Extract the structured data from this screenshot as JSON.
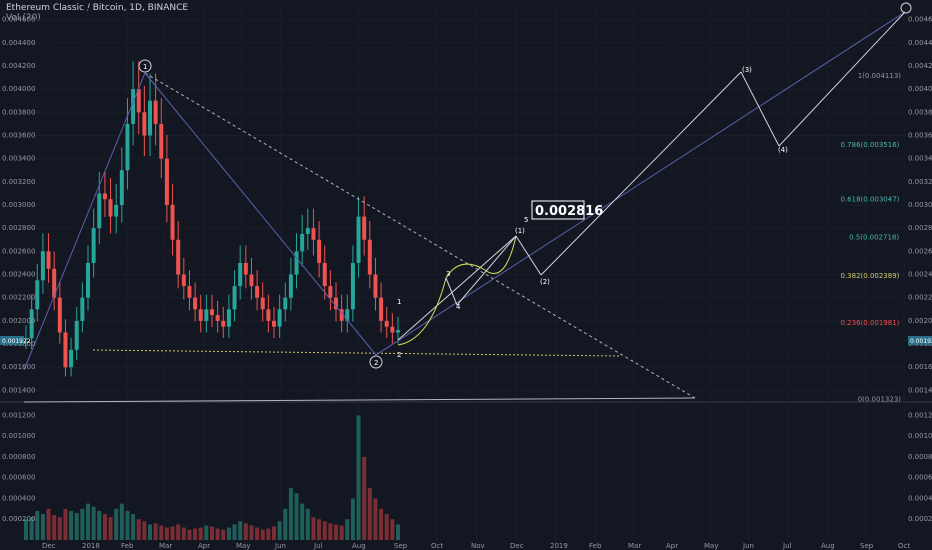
{
  "header": {
    "symbol_title": "Ethereum Classic / Bitcoin, 1D, BINANCE",
    "volume_label": "Vol (20)"
  },
  "colors": {
    "background": "#131722",
    "up_candle": "#26a69a",
    "down_candle": "#ef5350",
    "grid": "#1e222d",
    "fib_line": "#b2b5be"
  },
  "price_callout": "0.002816",
  "current_price_tag": "0.001922",
  "chart_data": {
    "type": "candlestick",
    "x_ticks": [
      "Dec",
      "2018",
      "Feb",
      "Mar",
      "Apr",
      "May",
      "Jun",
      "Jul",
      "Aug",
      "Sep",
      "Oct",
      "Nov",
      "Dec",
      "2019",
      "Feb",
      "Mar",
      "Apr",
      "May",
      "Jun",
      "Jul",
      "Aug",
      "Sep",
      "Oct"
    ],
    "y_ticks": [
      "0.004600",
      "0.004400",
      "0.004200",
      "0.004000",
      "0.003800",
      "0.003600",
      "0.003400",
      "0.003200",
      "0.003000",
      "0.002800",
      "0.002600",
      "0.002400",
      "0.002200",
      "0.002000",
      "0.001800",
      "0.001600",
      "0.001400"
    ],
    "volume_ticks": [
      "0.001200",
      "0.001000",
      "0.000800",
      "0.000600",
      "0.000400",
      "0.000200"
    ],
    "price_range": [
      0.0013,
      0.0047
    ],
    "fib_levels": [
      {
        "label": "1(0.004113)",
        "value": 0.004113,
        "color": "#9598a1"
      },
      {
        "label": "0.786(0.003516)",
        "value": 0.003516,
        "color": "#4db6ac"
      },
      {
        "label": "0.618(0.003047)",
        "value": 0.003047,
        "color": "#4db6ac"
      },
      {
        "label": "0.5(0.002718)",
        "value": 0.002718,
        "color": "#4db6ac"
      },
      {
        "label": "0.382(0.002389)",
        "value": 0.002389,
        "color": "#d4c96a"
      },
      {
        "label": "0.236(0.001981)",
        "value": 0.001981,
        "color": "#ef5350"
      },
      {
        "label": "0(0.001323)",
        "value": 0.001323,
        "color": "#9598a1"
      }
    ],
    "wave_labels": [
      "1",
      "2",
      "1",
      "2",
      "3",
      "4",
      "5",
      "(1)",
      "(2)",
      "(3)",
      "(4)"
    ],
    "price_series": [
      0.00185,
      0.0021,
      0.00235,
      0.0026,
      0.00245,
      0.0022,
      0.0019,
      0.0016,
      0.00175,
      0.002,
      0.0022,
      0.0025,
      0.0028,
      0.0031,
      0.00305,
      0.0029,
      0.003,
      0.0033,
      0.0037,
      0.004,
      0.0038,
      0.0036,
      0.0039,
      0.0037,
      0.0034,
      0.003,
      0.0027,
      0.0024,
      0.0023,
      0.0022,
      0.0021,
      0.002,
      0.0021,
      0.00205,
      0.002,
      0.00195,
      0.0021,
      0.0023,
      0.0025,
      0.0024,
      0.0023,
      0.0022,
      0.0021,
      0.002,
      0.00195,
      0.0021,
      0.0022,
      0.0024,
      0.0026,
      0.00275,
      0.0028,
      0.0027,
      0.0025,
      0.0023,
      0.0022,
      0.0021,
      0.002,
      0.0021,
      0.0025,
      0.0029,
      0.0027,
      0.0024,
      0.0022,
      0.002,
      0.00195,
      0.0019,
      0.00192
    ],
    "volume_series": [
      0.0002,
      0.00022,
      0.00028,
      0.00025,
      0.0003,
      0.00024,
      0.00022,
      0.0003,
      0.00028,
      0.00026,
      0.0003,
      0.00035,
      0.00032,
      0.00028,
      0.00025,
      0.00022,
      0.0003,
      0.00035,
      0.00028,
      0.00025,
      0.0002,
      0.00018,
      0.00015,
      0.00016,
      0.00014,
      0.00012,
      0.00013,
      0.00015,
      0.00012,
      0.0001,
      0.00011,
      0.00012,
      0.00014,
      0.00013,
      0.00011,
      0.0001,
      0.00012,
      0.00015,
      0.00018,
      0.00016,
      0.00014,
      0.00012,
      0.0001,
      0.00011,
      0.00013,
      0.00018,
      0.0003,
      0.0005,
      0.00045,
      0.00035,
      0.0003,
      0.00022,
      0.0002,
      0.00018,
      0.00016,
      0.00015,
      0.00014,
      0.0002,
      0.0004,
      0.0012,
      0.0008,
      0.0005,
      0.0004,
      0.0003,
      0.00025,
      0.0002,
      0.00015
    ]
  }
}
